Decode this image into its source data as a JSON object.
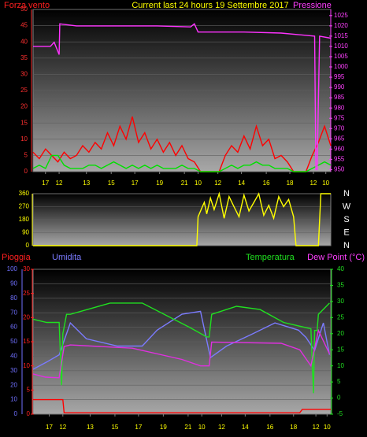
{
  "chart_data": [
    {
      "type": "line",
      "title": "Current last 24 hours 19 Settembre 2017",
      "ylabel": "Forza vento",
      "y2label": "Pressione",
      "xlim": [
        0,
        24
      ],
      "xticks": [
        {
          "value": 1.0,
          "label": "17"
        },
        {
          "value": 2.1,
          "label": "12"
        },
        {
          "value": 4.3,
          "label": "13"
        },
        {
          "value": 6.3,
          "label": "15"
        },
        {
          "value": 8.2,
          "label": "17"
        },
        {
          "value": 10.2,
          "label": "19"
        },
        {
          "value": 12.2,
          "label": "21"
        },
        {
          "value": 13.3,
          "label": "10"
        },
        {
          "value": 14.9,
          "label": "12"
        },
        {
          "value": 16.8,
          "label": "14"
        },
        {
          "value": 18.8,
          "label": "16"
        },
        {
          "value": 20.7,
          "label": "18"
        },
        {
          "value": 22.6,
          "label": "12"
        },
        {
          "value": 23.6,
          "label": "10"
        }
      ],
      "ylim": [
        0,
        50
      ],
      "yticks": [
        0,
        5,
        10,
        15,
        20,
        25,
        30,
        35,
        40,
        45,
        50
      ],
      "y2lim": [
        949,
        1028
      ],
      "y2ticks": [
        950,
        955,
        960,
        965,
        970,
        975,
        980,
        985,
        990,
        995,
        1000,
        1005,
        1010,
        1015,
        1020,
        1025
      ],
      "grid": true,
      "series": [
        {
          "color": "#ff0000",
          "axis": "y",
          "x": [
            0,
            0.5,
            1,
            1.5,
            2,
            2.5,
            3,
            3.5,
            4,
            4.5,
            5,
            5.5,
            6,
            6.5,
            7,
            7.5,
            8,
            8.5,
            9,
            9.5,
            10,
            10.5,
            11,
            11.5,
            12,
            12.5,
            13,
            13.5,
            14,
            14.5,
            15,
            15.5,
            16,
            16.5,
            17,
            17.5,
            18,
            18.5,
            19,
            19.5,
            20,
            20.5,
            21,
            21.5,
            22,
            22.5,
            23,
            23.5,
            24
          ],
          "values": [
            6,
            4,
            7,
            5,
            3,
            6,
            4,
            5,
            8,
            6,
            9,
            7,
            12,
            8,
            14,
            10,
            17,
            9,
            12,
            7,
            10,
            6,
            9,
            5,
            8,
            4,
            3,
            0,
            0,
            0,
            0,
            5,
            8,
            6,
            11,
            7,
            14,
            8,
            10,
            4,
            5,
            3,
            0,
            0,
            0,
            5,
            9,
            14,
            8
          ]
        },
        {
          "color": "#00e000",
          "axis": "y",
          "x": [
            0,
            0.5,
            1,
            1.5,
            2,
            2.5,
            3,
            3.5,
            4,
            4.5,
            5,
            5.5,
            6,
            6.5,
            7,
            7.5,
            8,
            8.5,
            9,
            9.5,
            10,
            10.5,
            11,
            11.5,
            12,
            12.5,
            13,
            13.5,
            14,
            14.5,
            15,
            15.5,
            16,
            16.5,
            17,
            17.5,
            18,
            18.5,
            19,
            19.5,
            20,
            20.5,
            21,
            21.5,
            22,
            22.5,
            23,
            23.5,
            24
          ],
          "values": [
            1,
            2,
            1,
            5,
            5,
            2,
            1,
            1,
            1,
            2,
            2,
            1,
            2,
            3,
            2,
            1,
            2,
            1,
            2,
            1,
            2,
            1,
            1,
            1,
            2,
            1,
            1,
            0,
            0,
            0,
            0,
            1,
            2,
            1,
            2,
            2,
            3,
            2,
            2,
            1,
            1,
            1,
            0,
            0,
            0,
            1,
            2,
            3,
            2
          ]
        },
        {
          "color": "#ff33ff",
          "axis": "y2",
          "x": [
            0,
            1.4,
            1.7,
            2.1,
            2.15,
            3.5,
            10,
            12.7,
            13.0,
            13.3,
            17,
            20,
            22.7,
            22.8,
            22.9,
            23.1,
            24
          ],
          "values": [
            1010,
            1010,
            1012,
            1006,
            1021,
            1020,
            1020,
            1019.5,
            1021,
            1017,
            1017,
            1016.5,
            1015,
            950,
            950,
            1015,
            1014
          ]
        }
      ]
    },
    {
      "type": "line",
      "xlim": [
        0,
        24
      ],
      "ylim": [
        0,
        360
      ],
      "yticks": [
        0,
        90,
        180,
        270,
        360
      ],
      "compass": [
        "N",
        "W",
        "S",
        "E",
        "N"
      ],
      "grid": true,
      "series": [
        {
          "color": "#ffff00",
          "axis": "y",
          "x": [
            0,
            13.2,
            13.3,
            13.6,
            13.8,
            14.0,
            14.3,
            14.6,
            15.0,
            15.4,
            15.8,
            16.2,
            16.6,
            17.0,
            17.4,
            17.8,
            18.2,
            18.6,
            19.0,
            19.4,
            19.8,
            20.2,
            20.6,
            21.0,
            21.2,
            23.0,
            23.2,
            24
          ],
          "values": [
            0,
            0,
            200,
            260,
            300,
            220,
            330,
            250,
            360,
            190,
            340,
            270,
            200,
            350,
            240,
            300,
            360,
            210,
            280,
            190,
            340,
            270,
            320,
            200,
            0,
            0,
            360,
            360
          ]
        }
      ]
    },
    {
      "type": "line",
      "xlim": [
        0,
        24
      ],
      "xticks": [
        {
          "value": 1.3,
          "label": "17"
        },
        {
          "value": 2.4,
          "label": "12"
        },
        {
          "value": 4.6,
          "label": "13"
        },
        {
          "value": 6.6,
          "label": "15"
        },
        {
          "value": 8.5,
          "label": "17"
        },
        {
          "value": 10.5,
          "label": "19"
        },
        {
          "value": 12.5,
          "label": "21"
        },
        {
          "value": 13.6,
          "label": "10"
        },
        {
          "value": 15.2,
          "label": "12"
        },
        {
          "value": 17.1,
          "label": "14"
        },
        {
          "value": 19.1,
          "label": "16"
        },
        {
          "value": 21.0,
          "label": "18"
        },
        {
          "value": 22.8,
          "label": "12"
        },
        {
          "value": 23.7,
          "label": "10"
        }
      ],
      "ylim": [
        0,
        100
      ],
      "yticks": [
        0,
        10,
        20,
        30,
        40,
        50,
        60,
        70,
        80,
        90,
        100
      ],
      "y3lim": [
        0,
        30
      ],
      "y3ticks": [
        0,
        5,
        10,
        15,
        20,
        25,
        30
      ],
      "y2lim": [
        -5,
        40
      ],
      "y2ticks": [
        -5,
        0,
        5,
        10,
        15,
        20,
        25,
        30,
        35,
        40
      ],
      "grid": true,
      "series": [
        {
          "name": "Pioggia",
          "color": "#ff0000",
          "axis": "y3",
          "x": [
            0,
            2.4,
            2.5,
            21.5,
            21.7,
            24
          ],
          "values": [
            3,
            3,
            0.3,
            0.3,
            1,
            1
          ]
        },
        {
          "name": "Umidita",
          "color": "#7b7bff",
          "axis": "y",
          "x": [
            0,
            1.1,
            2.1,
            3.0,
            4.3,
            6.8,
            8.8,
            10.0,
            12.0,
            13.5,
            14.3,
            15.6,
            17.6,
            19.5,
            21.4,
            22.0,
            22.7,
            23.4,
            23.9
          ],
          "values": [
            31,
            36,
            41,
            63,
            52,
            47,
            47,
            58,
            69,
            71,
            39,
            47,
            55,
            63,
            58,
            53,
            44,
            63,
            41
          ]
        },
        {
          "name": "Temperatura",
          "color": "#20e020",
          "axis": "y2",
          "x": [
            0,
            1.1,
            2.1,
            2.3,
            2.4,
            2.7,
            3.0,
            6.2,
            8.8,
            12.6,
            14.0,
            14.2,
            14.4,
            16.4,
            18.3,
            20.2,
            22.4,
            22.6,
            22.7,
            22.9,
            23.0,
            23.9
          ],
          "values": [
            24.5,
            23.5,
            23.5,
            4,
            20,
            26,
            26,
            29.5,
            29.5,
            22,
            19,
            19,
            26,
            28.5,
            27.5,
            23.5,
            21.5,
            1.5,
            21,
            21,
            26,
            29.5
          ]
        },
        {
          "name": "Dew Point (°C)",
          "color": "#e030e0",
          "axis": "y2",
          "x": [
            0,
            1,
            2.1,
            2.5,
            3.0,
            8,
            12,
            13.5,
            14.2,
            14.4,
            20,
            21.5,
            22.4,
            23,
            23.9
          ],
          "values": [
            7.5,
            6.5,
            6.3,
            16,
            16.5,
            15.5,
            12,
            10,
            10,
            17.4,
            17,
            15,
            10,
            21,
            13.7
          ]
        }
      ]
    }
  ]
}
